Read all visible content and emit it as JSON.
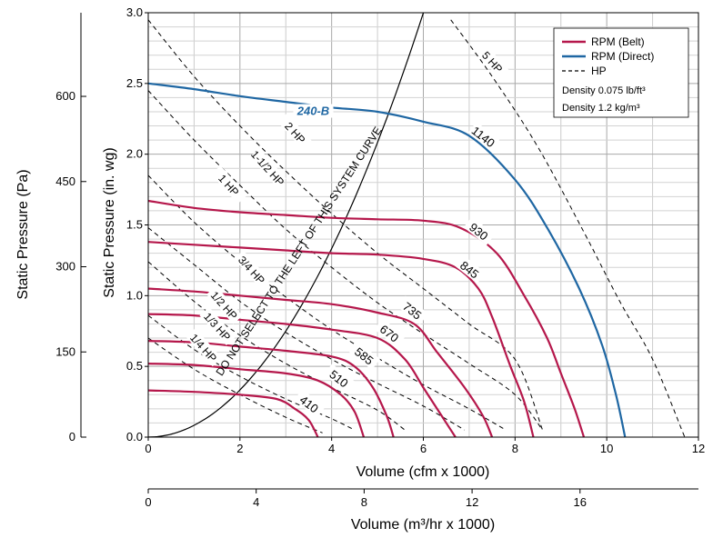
{
  "chart_data": {
    "type": "line",
    "title": "",
    "xlabel": "Volume (cfm x 1000)",
    "ylabel": "Static Pressure (in. wg)",
    "xlim": [
      0,
      12
    ],
    "ylim": [
      0,
      3.0
    ],
    "x_ticks": [
      "0",
      "2",
      "4",
      "6",
      "8",
      "10",
      "12"
    ],
    "y_ticks": [
      "0.0",
      "0.5",
      "1.0",
      "1.5",
      "2.0",
      "2.5",
      "3.0"
    ],
    "grid": true,
    "secondary_y": {
      "label": "Static Pressure (Pa)",
      "ticks": [
        {
          "label": "0",
          "value": 0
        },
        {
          "label": "150",
          "value": 150
        },
        {
          "label": "300",
          "value": 300
        },
        {
          "label": "450",
          "value": 450
        },
        {
          "label": "600",
          "value": 600
        }
      ],
      "conversion_pa_per_inwg": 249.09
    },
    "secondary_x": {
      "label": "Volume (m³/hr x 1000)",
      "ticks": [
        {
          "label": "0",
          "value": 0
        },
        {
          "label": "4",
          "value": 4
        },
        {
          "label": "8",
          "value": 8
        },
        {
          "label": "12",
          "value": 12
        },
        {
          "label": "16",
          "value": 16
        }
      ],
      "conversion_m3hr_per_cfm": 1.699
    },
    "legend": {
      "position": "top-right",
      "entries": [
        {
          "label": "RPM (Belt)",
          "color": "#b5174b",
          "style": "solid"
        },
        {
          "label": "RPM (Direct)",
          "color": "#1f67a3",
          "style": "solid"
        },
        {
          "label": "HP",
          "color": "#000000",
          "style": "dashed"
        }
      ],
      "notes": [
        "Density 0.075 lb/ft³",
        "Density 1.2 kg/m³"
      ]
    },
    "series": [
      {
        "name": "410",
        "kind": "belt",
        "label_pos": [
          3.5,
          0.23
        ],
        "points": [
          [
            0,
            0.33
          ],
          [
            1,
            0.32
          ],
          [
            2,
            0.3
          ],
          [
            2.8,
            0.27
          ],
          [
            3.2,
            0.2
          ],
          [
            3.5,
            0.12
          ],
          [
            3.7,
            0
          ]
        ]
      },
      {
        "name": "510",
        "kind": "belt",
        "label_pos": [
          4.15,
          0.41
        ],
        "points": [
          [
            0,
            0.52
          ],
          [
            1,
            0.51
          ],
          [
            2,
            0.48
          ],
          [
            3,
            0.45
          ],
          [
            3.7,
            0.4
          ],
          [
            4.2,
            0.3
          ],
          [
            4.5,
            0.18
          ],
          [
            4.7,
            0
          ]
        ]
      },
      {
        "name": "585",
        "kind": "belt",
        "label_pos": [
          4.7,
          0.57
        ],
        "points": [
          [
            0,
            0.68
          ],
          [
            1,
            0.67
          ],
          [
            2,
            0.64
          ],
          [
            3,
            0.61
          ],
          [
            4,
            0.57
          ],
          [
            4.5,
            0.5
          ],
          [
            4.9,
            0.35
          ],
          [
            5.2,
            0.15
          ],
          [
            5.35,
            0
          ]
        ]
      },
      {
        "name": "670",
        "kind": "belt",
        "label_pos": [
          5.25,
          0.73
        ],
        "points": [
          [
            0,
            0.87
          ],
          [
            1,
            0.86
          ],
          [
            2,
            0.83
          ],
          [
            3,
            0.8
          ],
          [
            4,
            0.76
          ],
          [
            5,
            0.7
          ],
          [
            5.6,
            0.55
          ],
          [
            6,
            0.35
          ],
          [
            6.4,
            0.15
          ],
          [
            6.7,
            0
          ]
        ]
      },
      {
        "name": "735",
        "kind": "belt",
        "label_pos": [
          5.75,
          0.89
        ],
        "points": [
          [
            0,
            1.05
          ],
          [
            1,
            1.03
          ],
          [
            2,
            1.0
          ],
          [
            3,
            0.97
          ],
          [
            4,
            0.94
          ],
          [
            5,
            0.88
          ],
          [
            5.8,
            0.8
          ],
          [
            6.3,
            0.6
          ],
          [
            6.9,
            0.35
          ],
          [
            7.3,
            0.15
          ],
          [
            7.5,
            0
          ]
        ]
      },
      {
        "name": "845",
        "kind": "belt",
        "label_pos": [
          7.0,
          1.18
        ],
        "points": [
          [
            0,
            1.38
          ],
          [
            1,
            1.36
          ],
          [
            2,
            1.34
          ],
          [
            3,
            1.32
          ],
          [
            4,
            1.3
          ],
          [
            5,
            1.29
          ],
          [
            6,
            1.26
          ],
          [
            6.7,
            1.2
          ],
          [
            7.2,
            1.05
          ],
          [
            7.5,
            0.85
          ],
          [
            7.9,
            0.5
          ],
          [
            8.2,
            0.25
          ],
          [
            8.4,
            0
          ]
        ]
      },
      {
        "name": "930",
        "kind": "belt",
        "label_pos": [
          7.2,
          1.45
        ],
        "points": [
          [
            0,
            1.67
          ],
          [
            1,
            1.62
          ],
          [
            2,
            1.59
          ],
          [
            3,
            1.57
          ],
          [
            4,
            1.55
          ],
          [
            5,
            1.54
          ],
          [
            6,
            1.53
          ],
          [
            6.8,
            1.48
          ],
          [
            7.6,
            1.3
          ],
          [
            8.2,
            1.0
          ],
          [
            8.7,
            0.7
          ],
          [
            9.0,
            0.45
          ],
          [
            9.3,
            0.2
          ],
          [
            9.5,
            0
          ]
        ]
      },
      {
        "name": "1140",
        "kind": "direct",
        "label_pos": [
          7.3,
          2.12
        ],
        "points": [
          [
            0,
            2.5
          ],
          [
            1,
            2.46
          ],
          [
            2,
            2.41
          ],
          [
            3,
            2.37
          ],
          [
            4,
            2.33
          ],
          [
            5,
            2.3
          ],
          [
            6,
            2.23
          ],
          [
            7,
            2.13
          ],
          [
            8,
            1.82
          ],
          [
            8.7,
            1.48
          ],
          [
            9.4,
            1.05
          ],
          [
            9.9,
            0.65
          ],
          [
            10.2,
            0.3
          ],
          [
            10.4,
            0
          ]
        ]
      }
    ],
    "hp_curves": [
      {
        "name": "1/4 HP",
        "points": [
          [
            0,
            0.7
          ],
          [
            1,
            0.48
          ],
          [
            2,
            0.3
          ],
          [
            3,
            0.14
          ],
          [
            3.8,
            0.03
          ]
        ]
      },
      {
        "name": "1/3 HP",
        "points": [
          [
            0,
            0.86
          ],
          [
            1,
            0.62
          ],
          [
            2,
            0.43
          ],
          [
            3,
            0.27
          ],
          [
            4,
            0.13
          ],
          [
            4.5,
            0.05
          ]
        ]
      },
      {
        "name": "1/2 HP",
        "points": [
          [
            0,
            1.24
          ],
          [
            1,
            0.96
          ],
          [
            2,
            0.72
          ],
          [
            3,
            0.52
          ],
          [
            4,
            0.35
          ],
          [
            5,
            0.19
          ],
          [
            5.6,
            0.05
          ]
        ]
      },
      {
        "name": "3/4 HP",
        "points": [
          [
            0,
            1.48
          ],
          [
            1,
            1.22
          ],
          [
            2,
            0.96
          ],
          [
            3,
            0.74
          ],
          [
            4,
            0.55
          ],
          [
            5,
            0.38
          ],
          [
            6,
            0.22
          ],
          [
            6.9,
            0.05
          ]
        ]
      },
      {
        "name": "1 HP",
        "points": [
          [
            0,
            1.85
          ],
          [
            1,
            1.52
          ],
          [
            2,
            1.24
          ],
          [
            3,
            0.99
          ],
          [
            4,
            0.76
          ],
          [
            5,
            0.56
          ],
          [
            6,
            0.37
          ],
          [
            7,
            0.2
          ],
          [
            7.8,
            0.05
          ]
        ]
      },
      {
        "name": "1-1/2 HP",
        "points": [
          [
            0,
            2.45
          ],
          [
            1,
            2.1
          ],
          [
            2,
            1.78
          ],
          [
            3,
            1.47
          ],
          [
            4,
            1.2
          ],
          [
            5,
            0.95
          ],
          [
            6,
            0.73
          ],
          [
            7,
            0.52
          ],
          [
            8,
            0.3
          ],
          [
            8.6,
            0.05
          ]
        ]
      },
      {
        "name": "2 HP",
        "points": [
          [
            0,
            2.95
          ],
          [
            1,
            2.55
          ],
          [
            2,
            2.2
          ],
          [
            3,
            1.88
          ],
          [
            4,
            1.58
          ],
          [
            5,
            1.3
          ],
          [
            6,
            1.05
          ],
          [
            7,
            0.8
          ],
          [
            8,
            0.55
          ],
          [
            8.6,
            0.05
          ]
        ]
      },
      {
        "name": "5 HP",
        "points": [
          [
            6.6,
            2.95
          ],
          [
            7.5,
            2.55
          ],
          [
            8.5,
            2.05
          ],
          [
            9.5,
            1.45
          ],
          [
            10.3,
            0.95
          ],
          [
            11,
            0.55
          ],
          [
            11.7,
            0
          ]
        ]
      }
    ],
    "system_curve": {
      "label": "DO NOT SELECT TO THE LEFT OF THIS SYSTEM CURVE",
      "coefficient": 0.0833
    },
    "annotations": [
      {
        "text": "240-B",
        "color": "#1f67a3",
        "x": 3.6,
        "y": 2.29
      }
    ],
    "hp_labels": [
      {
        "text": "1/4 HP",
        "x": 1.2,
        "y": 0.63
      },
      {
        "text": "1/3 HP",
        "x": 1.5,
        "y": 0.78
      },
      {
        "text": "1/2 HP",
        "x": 1.65,
        "y": 0.93
      },
      {
        "text": "3/4 HP",
        "x": 2.25,
        "y": 1.18
      },
      {
        "text": "1 HP",
        "x": 1.75,
        "y": 1.78
      },
      {
        "text": "1-1/2 HP",
        "x": 2.6,
        "y": 1.9
      },
      {
        "text": "2 HP",
        "x": 3.2,
        "y": 2.15
      },
      {
        "text": "5 HP",
        "x": 7.5,
        "y": 2.65
      }
    ]
  }
}
